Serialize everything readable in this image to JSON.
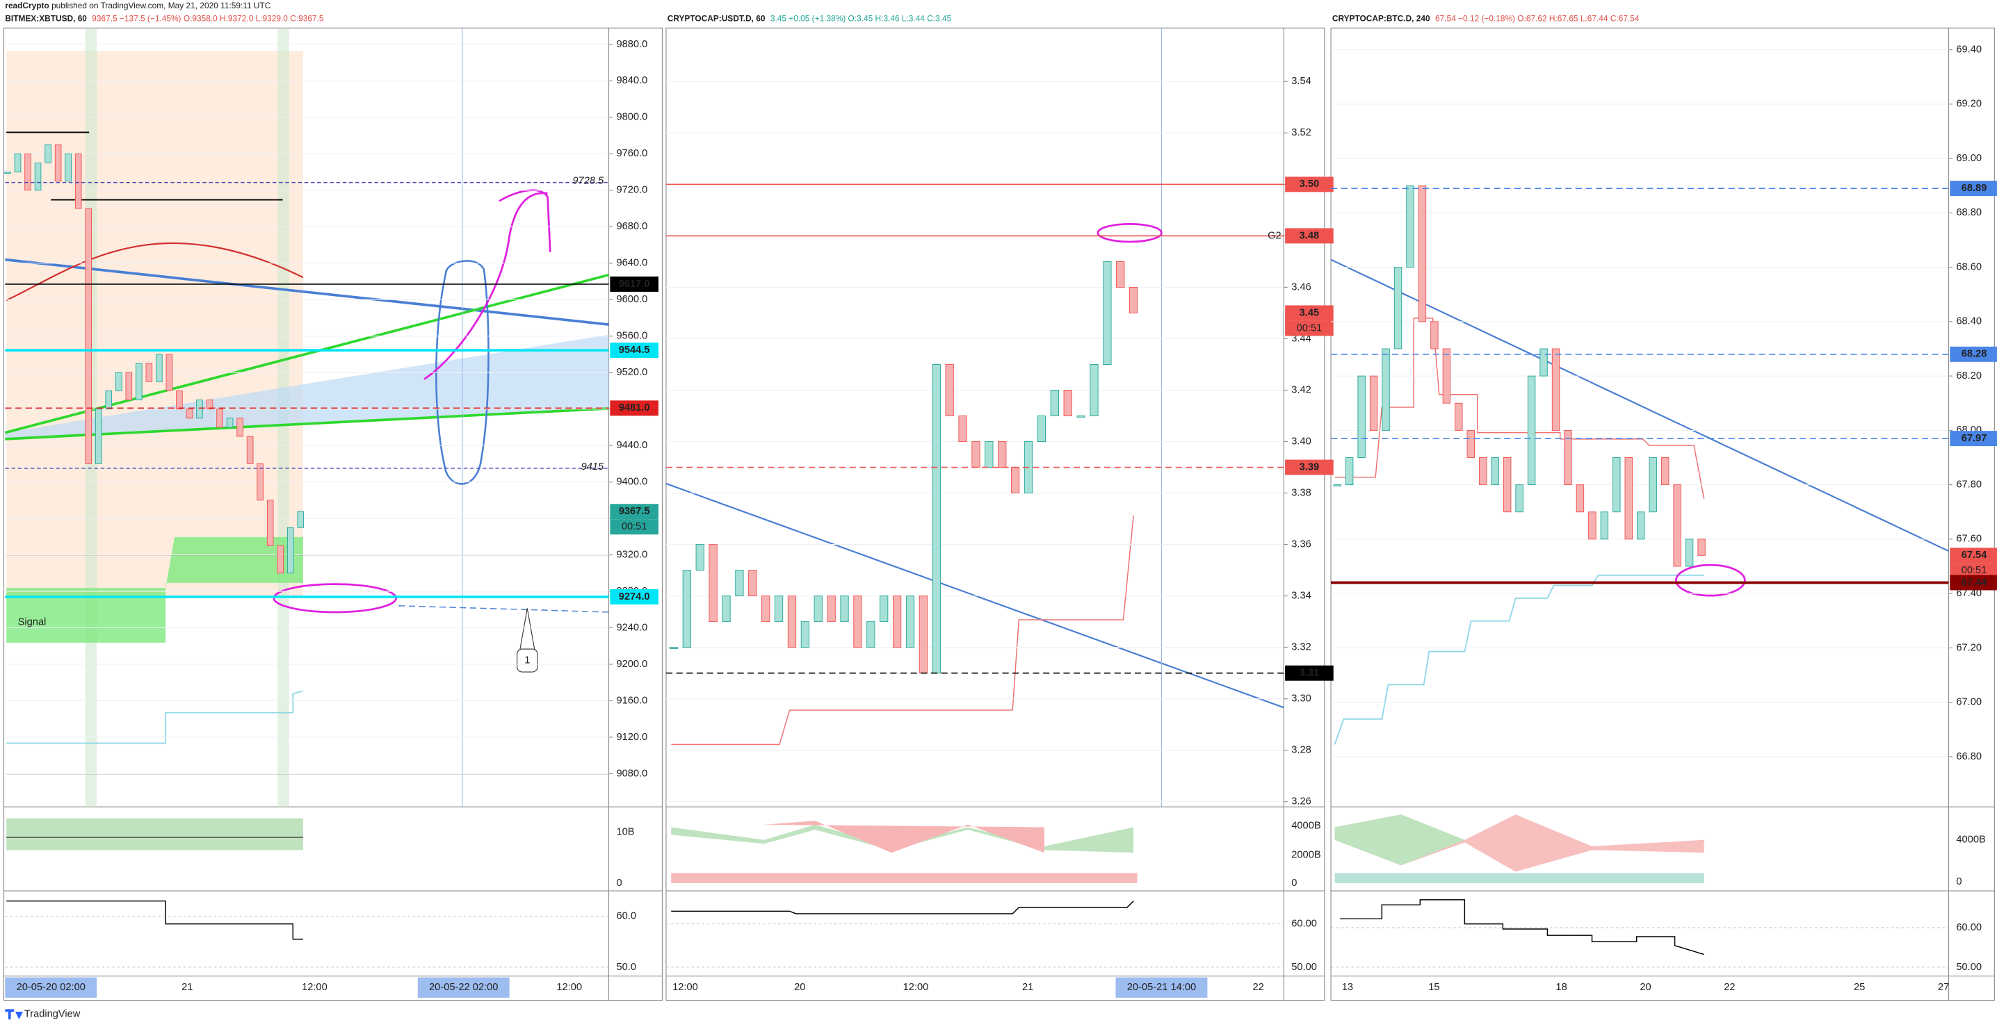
{
  "header": {
    "publisher": "readCrypto",
    "published": "published on TradingView.com, May 21, 2020 11:59:11 UTC"
  },
  "footer": "TradingView",
  "panes": [
    {
      "symbol": "BITMEX:XBTUSD, 60",
      "quote": "9367.5 −137.5 (−1.45%) O:9358.0 H:9372.0 L:9329.0 C:9367.5",
      "quote_color": "#e0504a",
      "ylim": [
        9045,
        9898
      ],
      "yticks": [
        {
          "value": 9880,
          "label": "9880.0"
        },
        {
          "value": 9840,
          "label": "9840.0"
        },
        {
          "value": 9800,
          "label": "9800.0"
        },
        {
          "value": 9760,
          "label": "9760.0"
        },
        {
          "value": 9720,
          "label": "9720.0"
        },
        {
          "value": 9680,
          "label": "9680.0"
        },
        {
          "value": 9640,
          "label": "9640.0"
        },
        {
          "value": 9600,
          "label": "9600.0"
        },
        {
          "value": 9560,
          "label": "9560.0"
        },
        {
          "value": 9520,
          "label": "9520.0"
        },
        {
          "value": 9480,
          "label": "9480.0"
        },
        {
          "value": 9440,
          "label": "9440.0"
        },
        {
          "value": 9400,
          "label": "9400.0"
        },
        {
          "value": 9360,
          "label": "9360.0"
        },
        {
          "value": 9320,
          "label": "9320.0"
        },
        {
          "value": 9280,
          "label": "9280.0"
        },
        {
          "value": 9240,
          "label": "9240.0"
        },
        {
          "value": 9200,
          "label": "9200.0"
        },
        {
          "value": 9160,
          "label": "9160.0"
        },
        {
          "value": 9120,
          "label": "9120.0"
        },
        {
          "value": 9080,
          "label": "9080.0"
        }
      ],
      "price_tags": [
        {
          "value": 9617,
          "label": "9617.0",
          "color": "#000000",
          "line": "solid"
        },
        {
          "value": 9544.5,
          "label": "9544.5",
          "color": "#00e5f5",
          "line": "solid"
        },
        {
          "value": 9481,
          "label": "9481.0",
          "color": "#e02020",
          "line": "dashed"
        },
        {
          "value": 9367.5,
          "label": "9367.5",
          "color": "#26a69a",
          "countdown": "00:51"
        },
        {
          "value": 9274,
          "label": "9274.0",
          "color": "#00e5f5",
          "line": "solid"
        }
      ],
      "dashed_levels": [
        {
          "value": 9728.5,
          "label": "9728.5",
          "color": "#4a4ab8"
        },
        {
          "value": 9415,
          "label": "9415",
          "color": "#4a4ab8"
        }
      ],
      "annotations": [
        "Signal",
        "1"
      ],
      "vol_ticks": [
        "10B",
        "0"
      ],
      "rsi_ticks": [
        "60.0",
        "50.0"
      ],
      "time_labels": [
        {
          "label": "20-05-20   02:00",
          "highlight": true
        },
        {
          "label": "21"
        },
        {
          "label": "12:00"
        },
        {
          "label": "20-05-22   02:00",
          "highlight": true
        },
        {
          "label": "12:00"
        }
      ],
      "closes": [
        9740,
        9760,
        9720,
        9750,
        9770,
        9730,
        9760,
        9700,
        9420,
        9480,
        9500,
        9520,
        9490,
        9530,
        9510,
        9540,
        9500,
        9480,
        9470,
        9490,
        9480,
        9460,
        9470,
        9450,
        9420,
        9380,
        9330,
        9300,
        9350,
        9367.5
      ]
    },
    {
      "symbol": "CRYPTOCAP:USDT.D, 60",
      "quote": "3.45 +0.05 (+1.38%) O:3.45 H:3.46 L:3.44 C:3.45",
      "quote_color": "#26a69a",
      "ylim": [
        3.2585,
        3.5608
      ],
      "yticks": [
        3.54,
        3.52,
        {
          "value": 3.5,
          "label": "3.50"
        },
        {
          "value": 3.48,
          "label": "3.48"
        },
        3.46,
        {
          "value": 3.44,
          "label": "3.44"
        },
        3.42,
        {
          "value": 3.4,
          "label": "3.40"
        },
        3.38,
        3.36,
        3.34,
        3.32,
        {
          "value": 3.3,
          "label": "3.30"
        },
        3.28,
        3.26
      ],
      "price_tags": [
        {
          "value": 3.5,
          "label": "3.50",
          "color": "#ef5350",
          "line": "solid"
        },
        {
          "value": 3.48,
          "label": "3.48",
          "color": "#ef5350",
          "line": "solid",
          "note": "G2"
        },
        {
          "value": 3.45,
          "label": "3.45",
          "color": "#ef5350",
          "countdown": "00:51"
        },
        {
          "value": 3.39,
          "label": "3.39",
          "color": "#ef5350",
          "line": "dashed"
        },
        {
          "value": 3.31,
          "label": "3.31",
          "color": "#000000",
          "line": "dashed"
        }
      ],
      "vol_ticks": [
        "4000B",
        "2000B",
        "0"
      ],
      "rsi_ticks": [
        "60.00",
        "50.00"
      ],
      "time_labels": [
        {
          "label": "12:00"
        },
        {
          "label": "20"
        },
        {
          "label": "12:00"
        },
        {
          "label": "21"
        },
        {
          "label": "20-05-21   14:00",
          "highlight": true
        },
        {
          "label": "22"
        }
      ],
      "closes": [
        3.32,
        3.35,
        3.36,
        3.33,
        3.34,
        3.35,
        3.34,
        3.33,
        3.34,
        3.32,
        3.33,
        3.34,
        3.33,
        3.34,
        3.32,
        3.33,
        3.34,
        3.32,
        3.34,
        3.31,
        3.43,
        3.41,
        3.4,
        3.39,
        3.4,
        3.39,
        3.38,
        3.4,
        3.41,
        3.42,
        3.41,
        3.41,
        3.43,
        3.47,
        3.46,
        3.45
      ]
    },
    {
      "symbol": "CRYPTOCAP:BTC.D, 240",
      "quote": "67.54 −0.12 (−0.18%) O:67.62 H:67.65 L:67.44 C:67.54",
      "quote_color": "#e0504a",
      "ylim": [
        66.62,
        69.48
      ],
      "yticks": [
        {
          "value": 69.4,
          "label": "69.40"
        },
        {
          "value": 69.2,
          "label": "69.20"
        },
        {
          "value": 69,
          "label": "69.00"
        },
        {
          "value": 68.8,
          "label": "68.80"
        },
        {
          "value": 68.6,
          "label": "68.60"
        },
        {
          "value": 68.4,
          "label": "68.40"
        },
        {
          "value": 68.2,
          "label": "68.20"
        },
        {
          "value": 68,
          "label": "68.00"
        },
        {
          "value": 67.8,
          "label": "67.80"
        },
        {
          "value": 67.6,
          "label": "67.60"
        },
        {
          "value": 67.4,
          "label": "67.40"
        },
        {
          "value": 67.2,
          "label": "67.20"
        },
        {
          "value": 67,
          "label": "67.00"
        },
        {
          "value": 66.8,
          "label": "66.80"
        }
      ],
      "price_tags": [
        {
          "value": 68.89,
          "label": "68.89",
          "color": "#4a86e8",
          "line": "dashed"
        },
        {
          "value": 68.28,
          "label": "68.28",
          "color": "#4a86e8",
          "line": "dashed"
        },
        {
          "value": 67.97,
          "label": "67.97",
          "color": "#4a86e8",
          "line": "dashed"
        },
        {
          "value": 67.54,
          "label": "67.54",
          "color": "#ef5350",
          "countdown": "00:51"
        },
        {
          "value": 67.44,
          "label": "67.44",
          "color": "#8b0000",
          "line": "solid"
        }
      ],
      "vol_ticks": [
        "4000B",
        "0"
      ],
      "rsi_ticks": [
        "60.00",
        "50.00"
      ],
      "time_labels": [
        {
          "label": "13"
        },
        {
          "label": "15"
        },
        {
          "label": "18"
        },
        {
          "label": "20"
        },
        {
          "label": "22"
        },
        {
          "label": "25"
        },
        {
          "label": "27"
        }
      ],
      "closes": [
        67.8,
        67.9,
        68.2,
        68,
        68.3,
        68.6,
        68.9,
        68.4,
        68.3,
        68.1,
        68,
        67.9,
        67.8,
        67.9,
        67.7,
        67.8,
        68.2,
        68.3,
        68,
        67.8,
        67.7,
        67.6,
        67.7,
        67.9,
        67.6,
        67.7,
        67.9,
        67.8,
        67.5,
        67.6,
        67.54
      ]
    }
  ]
}
